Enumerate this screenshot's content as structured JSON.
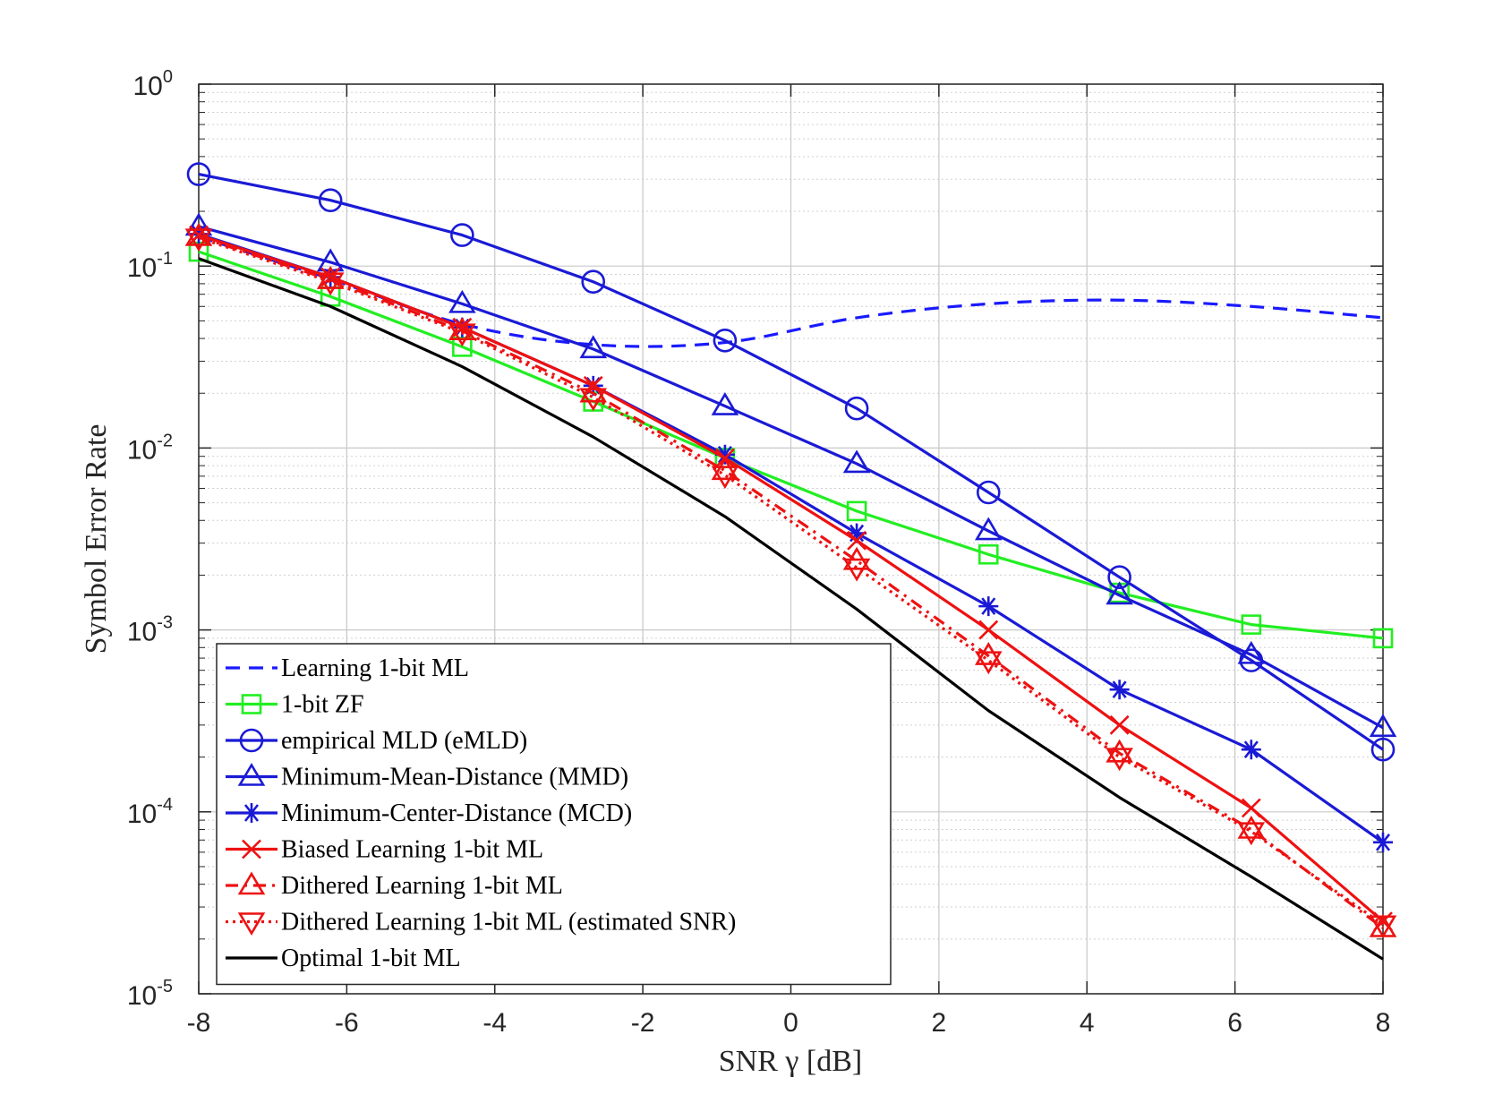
{
  "chart_data": {
    "type": "line",
    "title": "",
    "xlabel": "SNR γ [dB]",
    "ylabel": "Symbol Error Rate",
    "xlim": [
      -8,
      8
    ],
    "ylim": [
      1e-05,
      1
    ],
    "yscale": "log",
    "grid": true,
    "legend_position": "bottom-left",
    "x_ticks": [
      -8,
      -6,
      -4,
      -2,
      0,
      2,
      4,
      6,
      8
    ],
    "x_tick_labels": [
      "-8",
      "-6",
      "-4",
      "-2",
      "0",
      "2",
      "4",
      "6",
      "8"
    ],
    "y_ticks": [
      {
        "value": 1,
        "base": "10",
        "exp": "0"
      },
      {
        "value": 0.1,
        "base": "10",
        "exp": "-1"
      },
      {
        "value": 0.01,
        "base": "10",
        "exp": "-2"
      },
      {
        "value": 0.001,
        "base": "10",
        "exp": "-3"
      },
      {
        "value": 0.0001,
        "base": "10",
        "exp": "-4"
      },
      {
        "value": 1e-05,
        "base": "10",
        "exp": "-5"
      }
    ],
    "series": [
      {
        "name": "Learning 1-bit ML",
        "color": "#1a1aff",
        "line": "dashed",
        "marker": "none",
        "x": [
          -8,
          -6.22,
          -4.44,
          -2.67,
          -0.89,
          0.89,
          2.67,
          4.44,
          6.22,
          8
        ],
        "y": [
          0.145,
          0.085,
          0.048,
          0.037,
          0.038,
          0.052,
          0.062,
          0.065,
          0.06,
          0.052
        ]
      },
      {
        "name": "1-bit ZF",
        "color": "#22ee22",
        "line": "solid",
        "marker": "square",
        "x": [
          -8,
          -6.22,
          -4.44,
          -2.67,
          -0.89,
          0.89,
          2.67,
          4.44,
          6.22,
          8
        ],
        "y": [
          0.12,
          0.068,
          0.036,
          0.018,
          0.0088,
          0.0045,
          0.0026,
          0.0016,
          0.00107,
          0.0009
        ]
      },
      {
        "name": "empirical MLD (eMLD)",
        "color": "#1a1ad6",
        "line": "solid",
        "marker": "circle",
        "x": [
          -8,
          -6.22,
          -4.44,
          -2.67,
          -0.89,
          0.89,
          2.67,
          4.44,
          6.22,
          8
        ],
        "y": [
          0.32,
          0.23,
          0.148,
          0.082,
          0.039,
          0.0165,
          0.0057,
          0.00195,
          0.00068,
          0.00022
        ]
      },
      {
        "name": "Minimum-Mean-Distance (MMD)",
        "color": "#1a1ad6",
        "line": "solid",
        "marker": "triangle-up",
        "x": [
          -8,
          -6.22,
          -4.44,
          -2.67,
          -0.89,
          0.89,
          2.67,
          4.44,
          6.22,
          8
        ],
        "y": [
          0.165,
          0.105,
          0.062,
          0.035,
          0.017,
          0.0082,
          0.0035,
          0.00155,
          0.00073,
          0.00029
        ]
      },
      {
        "name": "Minimum-Center-Distance (MCD)",
        "color": "#1a1ad6",
        "line": "solid",
        "marker": "asterisk",
        "x": [
          -8,
          -6.22,
          -4.44,
          -2.67,
          -0.89,
          0.89,
          2.67,
          4.44,
          6.22,
          8
        ],
        "y": [
          0.15,
          0.087,
          0.046,
          0.022,
          0.0092,
          0.0034,
          0.00135,
          0.00047,
          0.00022,
          6.8e-05
        ]
      },
      {
        "name": "Biased Learning 1-bit ML",
        "color": "#ee1111",
        "line": "solid",
        "marker": "x",
        "x": [
          -8,
          -6.22,
          -4.44,
          -2.67,
          -0.89,
          0.89,
          2.67,
          4.44,
          6.22,
          8
        ],
        "y": [
          0.148,
          0.087,
          0.046,
          0.022,
          0.0088,
          0.0031,
          0.001,
          0.0003,
          0.000105,
          2.5e-05
        ]
      },
      {
        "name": "Dithered Learning 1-bit ML",
        "color": "#ee1111",
        "line": "dashdot",
        "marker": "triangle-up",
        "x": [
          -8,
          -6.22,
          -4.44,
          -2.67,
          -0.89,
          0.89,
          2.67,
          4.44,
          6.22,
          8
        ],
        "y": [
          0.145,
          0.084,
          0.044,
          0.02,
          0.0075,
          0.0024,
          0.00072,
          0.00021,
          8e-05,
          2.3e-05
        ]
      },
      {
        "name": "Dithered Learning 1-bit ML (estimated SNR)",
        "color": "#ee1111",
        "line": "dotted",
        "marker": "triangle-down",
        "x": [
          -8,
          -6.22,
          -4.44,
          -2.67,
          -0.89,
          0.89,
          2.67,
          4.44,
          6.22,
          8
        ],
        "y": [
          0.143,
          0.082,
          0.043,
          0.019,
          0.0071,
          0.0022,
          0.00068,
          0.0002,
          7.8e-05,
          2.4e-05
        ]
      },
      {
        "name": "Optimal 1-bit ML",
        "color": "#000000",
        "line": "solid",
        "marker": "none",
        "x": [
          -8,
          -6.22,
          -4.44,
          -2.67,
          -0.89,
          0.89,
          2.67,
          4.44,
          6.22,
          8
        ],
        "y": [
          0.11,
          0.06,
          0.028,
          0.0115,
          0.0042,
          0.0013,
          0.00036,
          0.00012,
          4.4e-05,
          1.55e-05
        ]
      }
    ]
  }
}
